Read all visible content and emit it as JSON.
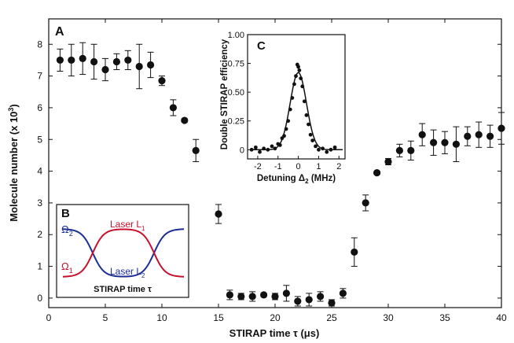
{
  "chart_data": [
    {
      "panel": "A",
      "type": "scatter",
      "xlabel": "STIRAP time τ (μs)",
      "ylabel": "Molecule number (x 10³)",
      "xlim": [
        0,
        40
      ],
      "ylim": [
        -0.3,
        8.8
      ],
      "xticks": [
        0,
        5,
        10,
        15,
        20,
        25,
        30,
        35,
        40
      ],
      "yticks": [
        0,
        1,
        2,
        3,
        4,
        5,
        6,
        7,
        8
      ],
      "grid": false,
      "series": [
        {
          "error_bars": true,
          "points": [
            {
              "x": 1,
              "y": 7.5,
              "err": 0.35
            },
            {
              "x": 2,
              "y": 7.5,
              "err": 0.5
            },
            {
              "x": 3,
              "y": 7.55,
              "err": 0.5
            },
            {
              "x": 4,
              "y": 7.45,
              "err": 0.55
            },
            {
              "x": 5,
              "y": 7.2,
              "err": 0.35
            },
            {
              "x": 6,
              "y": 7.45,
              "err": 0.25
            },
            {
              "x": 7,
              "y": 7.5,
              "err": 0.3
            },
            {
              "x": 8,
              "y": 7.3,
              "err": 0.7
            },
            {
              "x": 9,
              "y": 7.35,
              "err": 0.4
            },
            {
              "x": 10,
              "y": 6.85,
              "err": 0.15
            },
            {
              "x": 11,
              "y": 6.0,
              "err": 0.25
            },
            {
              "x": 12,
              "y": 5.6,
              "err": 0.05
            },
            {
              "x": 13,
              "y": 4.65,
              "err": 0.35
            },
            {
              "x": 15,
              "y": 2.65,
              "err": 0.3
            },
            {
              "x": 16,
              "y": 0.1,
              "err": 0.15
            },
            {
              "x": 17,
              "y": 0.05,
              "err": 0.1
            },
            {
              "x": 18,
              "y": 0.05,
              "err": 0.15
            },
            {
              "x": 19,
              "y": 0.1,
              "err": 0.05
            },
            {
              "x": 20,
              "y": 0.05,
              "err": 0.1
            },
            {
              "x": 21,
              "y": 0.15,
              "err": 0.25
            },
            {
              "x": 22,
              "y": -0.1,
              "err": 0.15
            },
            {
              "x": 23,
              "y": -0.05,
              "err": 0.2
            },
            {
              "x": 24,
              "y": 0.05,
              "err": 0.15
            },
            {
              "x": 25,
              "y": -0.15,
              "err": 0.1
            },
            {
              "x": 26,
              "y": 0.15,
              "err": 0.15
            },
            {
              "x": 27,
              "y": 1.45,
              "err": 0.45
            },
            {
              "x": 28,
              "y": 3.0,
              "err": 0.25
            },
            {
              "x": 29,
              "y": 3.95,
              "err": 0.05
            },
            {
              "x": 30,
              "y": 4.3,
              "err": 0.1
            },
            {
              "x": 31,
              "y": 4.65,
              "err": 0.2
            },
            {
              "x": 32,
              "y": 4.65,
              "err": 0.3
            },
            {
              "x": 33,
              "y": 5.15,
              "err": 0.35
            },
            {
              "x": 34,
              "y": 4.9,
              "err": 0.4
            },
            {
              "x": 35,
              "y": 4.9,
              "err": 0.35
            },
            {
              "x": 36,
              "y": 4.85,
              "err": 0.55
            },
            {
              "x": 37,
              "y": 5.1,
              "err": 0.3
            },
            {
              "x": 38,
              "y": 5.15,
              "err": 0.4
            },
            {
              "x": 39,
              "y": 5.1,
              "err": 0.35
            },
            {
              "x": 40,
              "y": 5.35,
              "err": 0.5
            }
          ]
        }
      ]
    },
    {
      "panel": "B",
      "type": "line",
      "xlabel": "STIRAP time τ",
      "ylabel": "",
      "ylim": [
        0,
        1
      ],
      "series": [
        {
          "name": "Ω2",
          "label": "Laser L2",
          "color": "#1c2d94",
          "shape": "high → low → high"
        },
        {
          "name": "Ω1",
          "label": "Laser L1",
          "color": "#c8102e",
          "shape": "low → high → low"
        }
      ]
    },
    {
      "panel": "C",
      "type": "scatter",
      "xlabel": "Detuning Δ2 (MHz)",
      "ylabel": "Double STIRAP efficiency",
      "xlim": [
        -2.5,
        2.3
      ],
      "ylim": [
        -0.08,
        1.0
      ],
      "xticks": [
        -2,
        -1,
        0,
        1,
        2
      ],
      "yticks": [
        0,
        0.25,
        0.5,
        0.75,
        1.0
      ],
      "fit": {
        "peak": 0.67,
        "center": 0.0,
        "width_mhz": 0.4
      },
      "points": [
        {
          "x": -2.3,
          "y": 0.0
        },
        {
          "x": -2.1,
          "y": 0.02
        },
        {
          "x": -1.9,
          "y": -0.02
        },
        {
          "x": -1.7,
          "y": 0.01
        },
        {
          "x": -1.5,
          "y": 0.0
        },
        {
          "x": -1.3,
          "y": 0.03
        },
        {
          "x": -1.15,
          "y": 0.01
        },
        {
          "x": -1.0,
          "y": 0.05
        },
        {
          "x": -0.9,
          "y": 0.04
        },
        {
          "x": -0.8,
          "y": 0.1
        },
        {
          "x": -0.7,
          "y": 0.12
        },
        {
          "x": -0.6,
          "y": 0.18
        },
        {
          "x": -0.5,
          "y": 0.25
        },
        {
          "x": -0.4,
          "y": 0.35
        },
        {
          "x": -0.3,
          "y": 0.45
        },
        {
          "x": -0.2,
          "y": 0.57
        },
        {
          "x": -0.12,
          "y": 0.64
        },
        {
          "x": -0.05,
          "y": 0.74
        },
        {
          "x": 0.0,
          "y": 0.72
        },
        {
          "x": 0.05,
          "y": 0.69
        },
        {
          "x": 0.12,
          "y": 0.62
        },
        {
          "x": 0.2,
          "y": 0.55
        },
        {
          "x": 0.3,
          "y": 0.42
        },
        {
          "x": 0.4,
          "y": 0.3
        },
        {
          "x": 0.5,
          "y": 0.22
        },
        {
          "x": 0.6,
          "y": 0.13
        },
        {
          "x": 0.7,
          "y": 0.08
        },
        {
          "x": 0.85,
          "y": 0.03
        },
        {
          "x": 1.0,
          "y": 0.0
        },
        {
          "x": 1.2,
          "y": 0.01
        },
        {
          "x": 1.4,
          "y": -0.02
        },
        {
          "x": 1.6,
          "y": 0.0
        },
        {
          "x": 1.8,
          "y": 0.02
        }
      ]
    }
  ],
  "labels": {
    "panel_a": "A",
    "panel_b": "B",
    "panel_c": "C",
    "a_xlabel": "STIRAP time τ (μs)",
    "a_ylabel_main": "Molecule number (x 10",
    "a_ylabel_exp": "3",
    "a_ylabel_close": ")",
    "b_xlabel": "STIRAP time τ",
    "b_omega2": "Ω",
    "b_omega2_sub": "2",
    "b_omega1": "Ω",
    "b_omega1_sub": "1",
    "b_laser1": "Laser L",
    "b_laser1_sub": "1",
    "b_laser2": "Laser L",
    "b_laser2_sub": "2",
    "c_xlabel": "Detuning Δ",
    "c_xlabel_sub": "2",
    "c_xlabel_unit": " (MHz)",
    "c_ylabel": "Double STIRAP efficiency"
  },
  "colors": {
    "omega1": "#c8102e",
    "omega2": "#1c2d94",
    "marker": "#111111"
  }
}
